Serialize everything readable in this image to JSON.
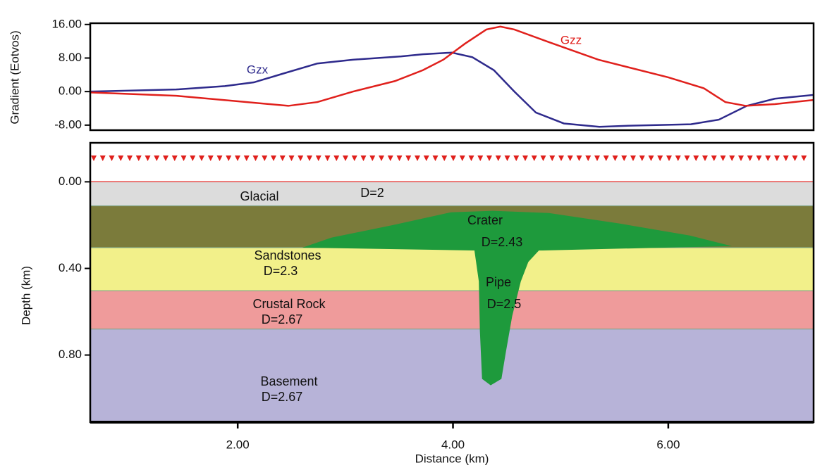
{
  "chart_data": [
    {
      "type": "line",
      "ylabel": "Gradient (Eotvos)",
      "xlim": [
        0.63,
        7.35
      ],
      "ylim": [
        -9.2,
        16.3
      ],
      "yticks": [
        {
          "value": 16,
          "label": "16.00"
        },
        {
          "value": 8,
          "label": "8.00"
        },
        {
          "value": 0,
          "label": "0.00"
        },
        {
          "value": -8,
          "label": "-8.00"
        }
      ],
      "series": [
        {
          "name": "Gzx",
          "color": "#2e2a8c",
          "x": [
            0.63,
            1.43,
            1.88,
            2.15,
            2.41,
            2.74,
            3.07,
            3.52,
            3.72,
            3.99,
            4.18,
            4.38,
            4.57,
            4.77,
            5.03,
            5.36,
            5.68,
            6.21,
            6.47,
            6.73,
            6.99,
            7.35
          ],
          "values": [
            0,
            0.5,
            1.3,
            2.2,
            4.2,
            6.7,
            7.6,
            8.4,
            8.9,
            9.3,
            8.2,
            5.1,
            0,
            -5,
            -7.6,
            -8.4,
            -8.1,
            -7.8,
            -6.7,
            -3.4,
            -1.7,
            -0.8
          ]
        },
        {
          "name": "Gzz",
          "color": "#e0201c",
          "x": [
            0.63,
            1.43,
            1.95,
            2.47,
            2.74,
            3.07,
            3.46,
            3.72,
            3.91,
            4.11,
            4.31,
            4.44,
            4.57,
            4.89,
            5.35,
            6.0,
            6.33,
            6.53,
            6.72,
            6.99,
            7.35
          ],
          "values": [
            -0.2,
            -1.0,
            -2.2,
            -3.4,
            -2.5,
            0,
            2.5,
            5.1,
            7.6,
            11.4,
            14.8,
            15.5,
            14.8,
            11.8,
            7.6,
            3.4,
            0.8,
            -2.5,
            -3.4,
            -3.0,
            -2.0
          ]
        }
      ]
    },
    {
      "type": "section",
      "xlabel": "Distance (km)",
      "ylabel": "Depth (km)",
      "xlim": [
        0.63,
        7.35
      ],
      "ylim": [
        -0.18,
        1.11
      ],
      "xticks": [
        {
          "value": 2,
          "label": "2.00"
        },
        {
          "value": 4,
          "label": "4.00"
        },
        {
          "value": 6,
          "label": "6.00"
        }
      ],
      "yticks": [
        {
          "value": 0,
          "label": "0.00"
        },
        {
          "value": 0.4,
          "label": "0.40"
        },
        {
          "value": 0.8,
          "label": "0.80"
        }
      ],
      "layers": [
        {
          "name": "Glacial",
          "density": "D=2",
          "top": 0,
          "color": "#dcdcdc"
        },
        {
          "top": 0.111,
          "color": "#7b7b3b"
        },
        {
          "name": "Sandstones",
          "density": "D=2.3",
          "top": 0.304,
          "color": "#f2f08a"
        },
        {
          "name": "Crustal Rock",
          "density": "D=2.67",
          "top": 0.503,
          "color": "#ef9b9b"
        },
        {
          "name": "Basement",
          "density": "D=2.67",
          "top": 0.68,
          "color": "#b7b3d8"
        }
      ],
      "bodies": [
        {
          "name": "Crater",
          "density": "D=2.43",
          "color": "#1e9a3c",
          "x": [
            2.6,
            2.87,
            3.45,
            3.98,
            4.37,
            4.89,
            5.55,
            6.2,
            6.59,
            4.83,
            4.2
          ],
          "depth": [
            0.304,
            0.258,
            0.199,
            0.141,
            0.134,
            0.144,
            0.193,
            0.248,
            0.297,
            0.317,
            0.317
          ]
        },
        {
          "name": "Pipe",
          "density": "D=2.5",
          "color": "#1e9a3c",
          "x": [
            4.2,
            4.83,
            4.7,
            4.63,
            4.55,
            4.49,
            4.45,
            4.35,
            4.27,
            4.25,
            4.24,
            4.2
          ],
          "depth": [
            0.3,
            0.3,
            0.37,
            0.46,
            0.62,
            0.79,
            0.91,
            0.94,
            0.91,
            0.69,
            0.46,
            0.32
          ]
        }
      ]
    }
  ]
}
